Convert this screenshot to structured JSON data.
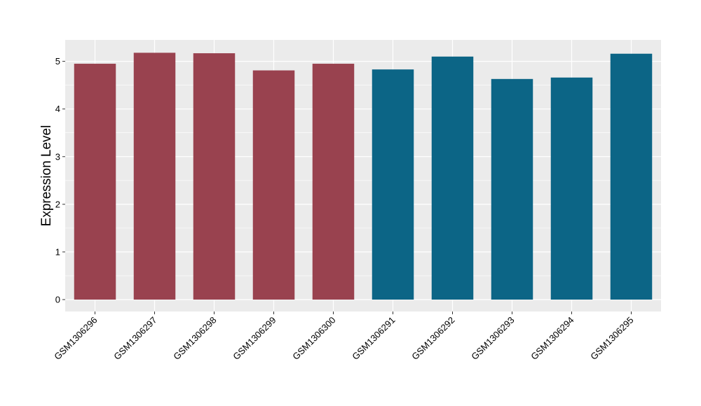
{
  "chart_data": {
    "type": "bar",
    "title": "",
    "xlabel": "",
    "ylabel": "Expression Level",
    "categories": [
      "GSM1306296",
      "GSM1306297",
      "GSM1306298",
      "GSM1306299",
      "GSM1306300",
      "GSM1306291",
      "GSM1306292",
      "GSM1306293",
      "GSM1306294",
      "GSM1306295"
    ],
    "values": [
      4.95,
      5.18,
      5.17,
      4.81,
      4.95,
      4.83,
      5.1,
      4.63,
      4.66,
      5.16
    ],
    "bar_colors": [
      "#99424f",
      "#99424f",
      "#99424f",
      "#99424f",
      "#99424f",
      "#0c6586",
      "#0c6586",
      "#0c6586",
      "#0c6586",
      "#0c6586"
    ],
    "ylim": [
      -0.25,
      5.45
    ],
    "y_ticks": [
      0,
      1,
      2,
      3,
      4,
      5
    ],
    "grid": true,
    "legend": "none",
    "panel_background": "#ebebeb",
    "grid_color": "#ffffff"
  }
}
